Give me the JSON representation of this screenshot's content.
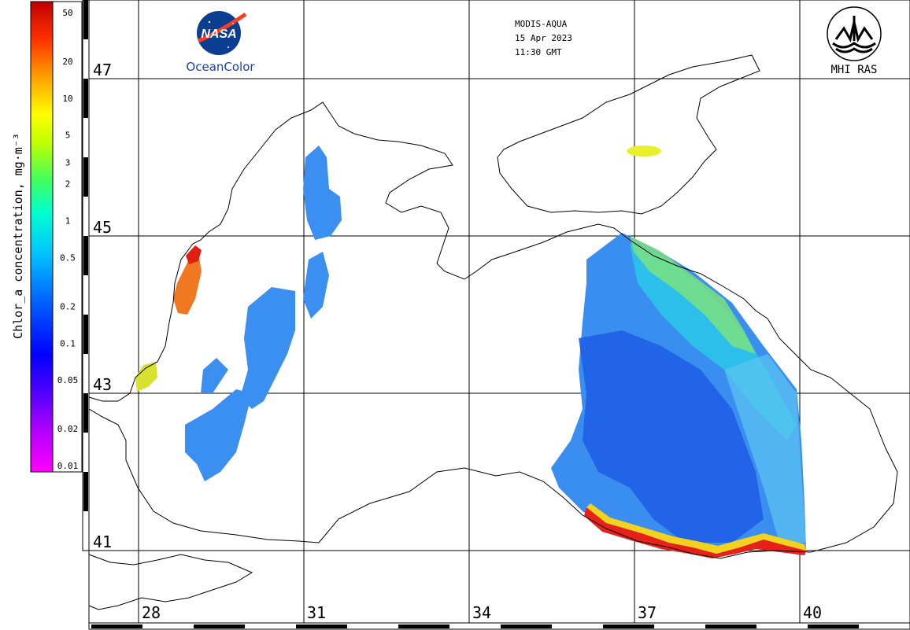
{
  "header": {
    "sensor": "MODIS-AQUA",
    "date": "15 Apr 2023",
    "time": "11:30 GMT"
  },
  "logos": {
    "left": {
      "badge_text": "NASA",
      "caption": "OceanColor",
      "icon": "nasa-meatball-icon"
    },
    "right": {
      "caption": "MHI RAS",
      "icon": "mhi-ras-emblem-icon"
    }
  },
  "colorbar": {
    "title": "Chlor_a concentration, mg·m⁻³",
    "ticks": [
      "50",
      "20",
      "10",
      "5",
      "3",
      "2",
      "1",
      "0.5",
      "0.2",
      "0.1",
      "0.05",
      "0.02",
      "0.01"
    ],
    "scale": "log",
    "range": [
      0.01,
      50
    ],
    "colors": [
      "#ff00ff",
      "#a000ff",
      "#0000ff",
      "#0080ff",
      "#00d0ff",
      "#00ffc0",
      "#80ff00",
      "#ffff00",
      "#ffa000",
      "#ff4000",
      "#ff0000",
      "#c00000"
    ]
  },
  "grid": {
    "latitudes": [
      "47",
      "45",
      "43",
      "41"
    ],
    "longitudes": [
      "28",
      "31",
      "34",
      "37",
      "40"
    ]
  },
  "colors": {
    "land_outline": "#000000",
    "grid": "#000000",
    "background": "#ffffff",
    "nasa_blue": "#0b3d91",
    "nasa_red": "#fc3d21",
    "caption_blue": "#1a3fb5"
  }
}
